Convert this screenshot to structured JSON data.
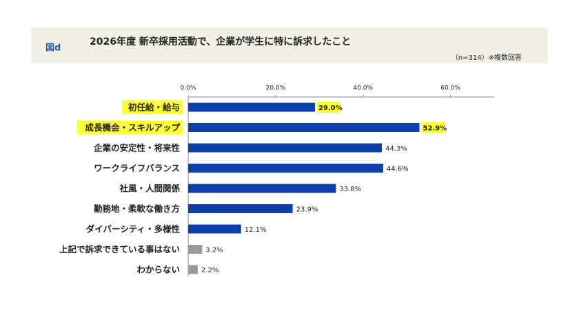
{
  "chart_data": {
    "type": "bar",
    "orientation": "horizontal",
    "figure_label": "図d",
    "title": "2026年度 新卒採用活動で、企業が学生に特に訴求したこと",
    "subtitle": "（n=314）※複数回答",
    "categories": [
      "初任給・給与",
      "成長機会・スキルアップ",
      "企業の安定性・将来性",
      "ワークライフバランス",
      "社風・人間関係",
      "勤務地・柔軟な働き方",
      "ダイバーシティ・多様性",
      "上記で訴求できている事はない",
      "わからない"
    ],
    "values": [
      29.0,
      52.9,
      44.3,
      44.6,
      33.8,
      23.9,
      12.1,
      3.2,
      2.2
    ],
    "value_labels": [
      "29.0%",
      "52.9%",
      "44.3%",
      "44.6%",
      "33.8%",
      "23.9%",
      "12.1%",
      "3.2%",
      "2.2%"
    ],
    "colors": [
      "#0d3fa8",
      "#0d3fa8",
      "#0d3fa8",
      "#0d3fa8",
      "#0d3fa8",
      "#0d3fa8",
      "#0d3fa8",
      "#9a9a9a",
      "#9a9a9a"
    ],
    "highlighted": [
      true,
      true,
      false,
      false,
      false,
      false,
      false,
      false,
      false
    ],
    "highlight_color": "#ffff33",
    "xlim": [
      0,
      70
    ],
    "xticks": [
      {
        "value": 0,
        "label": "0.0%"
      },
      {
        "value": 20,
        "label": "20.0%"
      },
      {
        "value": 40,
        "label": "40.0%"
      },
      {
        "value": 60,
        "label": "60.0%"
      }
    ],
    "grid": false
  }
}
